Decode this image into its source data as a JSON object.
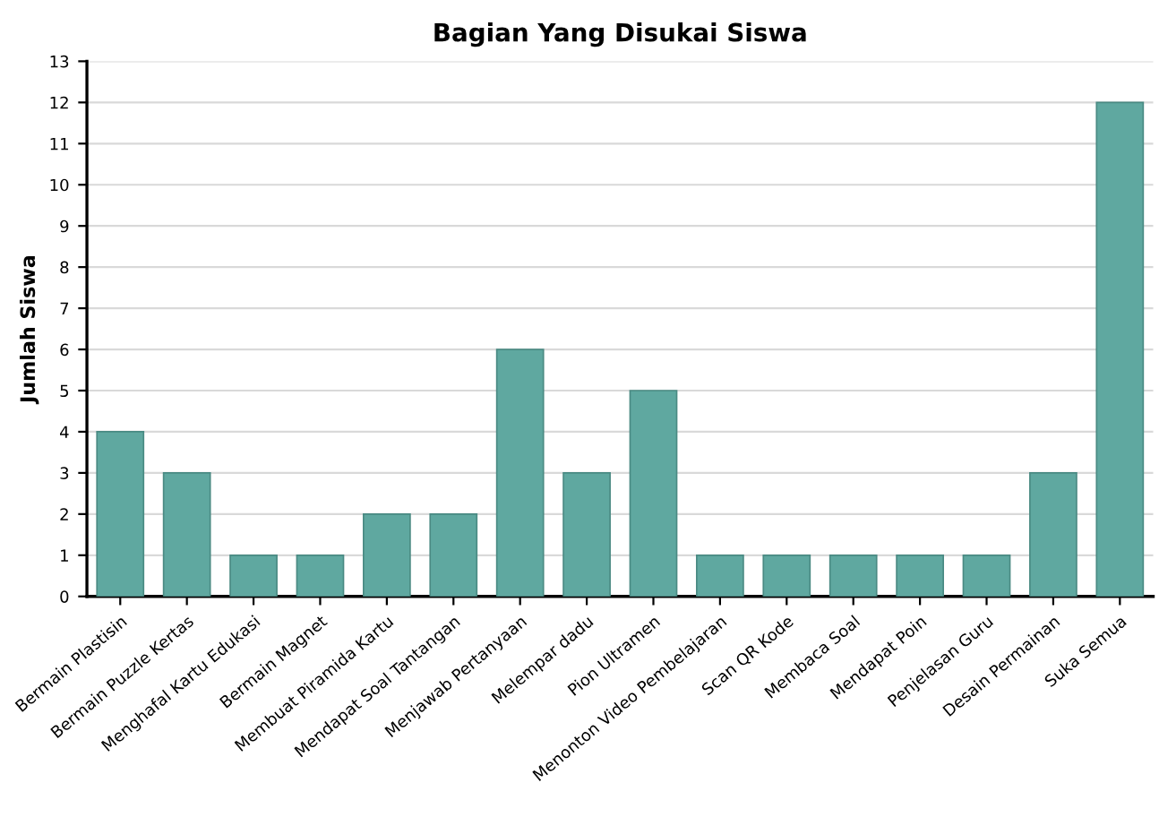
{
  "chart_data": {
    "type": "bar",
    "title": "Bagian Yang Disukai Siswa",
    "ylabel": "Jumlah Siswa",
    "categories": [
      "Bermain Plastisin",
      "Bermain Puzzle Kertas",
      "Menghafal Kartu Edukasi",
      "Bermain Magnet",
      "Membuat Piramida Kartu",
      "Mendapat Soal Tantangan",
      "Menjawab Pertanyaan",
      "Melempar dadu",
      "Pion Ultramen",
      "Menonton Video Pembelajaran",
      "Scan QR Kode",
      "Membaca Soal",
      "Mendapat Poin",
      "Penjelasan Guru",
      "Desain Permainan",
      "Suka Semua"
    ],
    "values": [
      4,
      3,
      1,
      1,
      2,
      2,
      6,
      3,
      5,
      1,
      1,
      1,
      1,
      1,
      3,
      12
    ],
    "color": "#5fa8a0",
    "ylim": [
      0,
      13
    ],
    "yticks": [
      0,
      1,
      2,
      3,
      4,
      5,
      6,
      7,
      8,
      9,
      10,
      11,
      12,
      13
    ],
    "grid": "y"
  }
}
